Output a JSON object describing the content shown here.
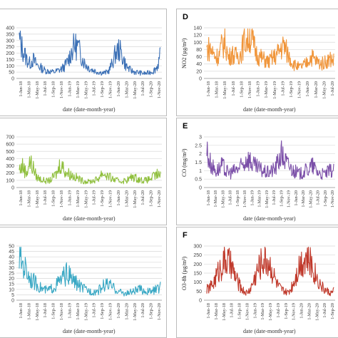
{
  "chart_data": [
    {
      "id": "A",
      "panel_letter": "",
      "type": "line",
      "color": "#3a6fb5",
      "xlabel": "date (date-month-year)",
      "ylabel": "",
      "ylim": [
        0,
        400
      ],
      "yticks": [
        0,
        50,
        100,
        150,
        200,
        250,
        300,
        350,
        400
      ],
      "xticks": [
        "1-Jan-18",
        "1-Mar-18",
        "1-May-18",
        "1-Jul-18",
        "1-Sep-18",
        "1-Nov-18",
        "1-Jan-19",
        "1-Mar-19",
        "1-May-19",
        "1-Jul-19",
        "1-Sep-19",
        "1-Nov-19",
        "1-Jan-20",
        "1-Mar-20",
        "1-May-20",
        "1-Jul-20",
        "1-Sep-20",
        "1-Nov-20"
      ],
      "series": [
        {
          "values": [
            300,
            230,
            160,
            120,
            150,
            110,
            90,
            70,
            60,
            55,
            50,
            60,
            70,
            90,
            130,
            200,
            260,
            250,
            180,
            120,
            90,
            70,
            60,
            50,
            45,
            45,
            60,
            120,
            200,
            230,
            170,
            100,
            70,
            55,
            50,
            45,
            40,
            40,
            50,
            60,
            90,
            180
          ]
        }
      ]
    },
    {
      "id": "D",
      "panel_letter": "D",
      "type": "line",
      "color": "#f0953a",
      "xlabel": "date (date-month-year)",
      "ylabel": "NO2 (µg/m³)",
      "ylim": [
        0,
        140
      ],
      "yticks": [
        0,
        20,
        40,
        60,
        80,
        100,
        120,
        140
      ],
      "xticks": [
        "1-Jan-18",
        "1-Mar-18",
        "1-May-18",
        "1-Jul-18",
        "1-Sep-18",
        "1-Nov-18",
        "1-Jan-19",
        "1-Mar-19",
        "1-May-19",
        "1-Jul-19",
        "1-Sep-19",
        "1-Nov-19",
        "1-Jan-20",
        "1-Mar-20",
        "1-May-20",
        "1-Jul-20"
      ],
      "series": [
        {
          "values": [
            80,
            85,
            70,
            60,
            65,
            95,
            100,
            55,
            70,
            60,
            65,
            70,
            100,
            110,
            120,
            95,
            70,
            60,
            55,
            50,
            45,
            55,
            60,
            70,
            85,
            90,
            70,
            55,
            40,
            35,
            30,
            35,
            40,
            55,
            60,
            50,
            45,
            40,
            45,
            50,
            55,
            50
          ]
        }
      ]
    },
    {
      "id": "B",
      "panel_letter": "",
      "type": "line",
      "color": "#8fbf3c",
      "xlabel": "date (date-month-year)",
      "ylabel": "",
      "ylim": [
        0,
        700
      ],
      "yticks": [
        0,
        100,
        200,
        300,
        400,
        500,
        600,
        700
      ],
      "xticks": [
        "1-Jan-18",
        "1-Mar-18",
        "1-May-18",
        "1-Jul-18",
        "1-Sep-18",
        "1-Nov-18",
        "1-Jan-19",
        "1-Mar-19",
        "1-May-19",
        "1-Jul-19",
        "1-Sep-19",
        "1-Nov-19",
        "1-Jan-20",
        "1-Mar-20",
        "1-May-20",
        "1-Jul-20",
        "1-Sep-20",
        "1-Nov-20"
      ],
      "series": [
        {
          "values": [
            250,
            300,
            200,
            350,
            280,
            150,
            120,
            100,
            90,
            100,
            150,
            200,
            350,
            250,
            200,
            180,
            150,
            130,
            100,
            90,
            80,
            90,
            100,
            130,
            200,
            180,
            150,
            120,
            100,
            90,
            90,
            100,
            120,
            150,
            130,
            110,
            100,
            100,
            120,
            150,
            180,
            160
          ]
        }
      ]
    },
    {
      "id": "E",
      "panel_letter": "E",
      "type": "line",
      "color": "#7b4fa8",
      "xlabel": "date (date-month-year)",
      "ylabel": "CO (mg/m³)",
      "ylim": [
        0,
        3
      ],
      "yticks": [
        0,
        0.5,
        1,
        1.5,
        2,
        2.5,
        3
      ],
      "xticks": [
        "1-Jan-18",
        "1-Mar-18",
        "1-May-18",
        "1-Jul-18",
        "1-Sep-18",
        "1-Nov-18",
        "1-Jan-19",
        "1-Mar-19",
        "1-May-19",
        "1-Jul-19",
        "1-Sep-19",
        "1-Nov-19",
        "1-Jan-20",
        "1-Mar-20",
        "1-May-20",
        "1-Jul-20",
        "1-Sep-20",
        "1-Nov-20"
      ],
      "series": [
        {
          "values": [
            2.2,
            1.5,
            1.2,
            1.0,
            1.1,
            1.3,
            1.0,
            0.9,
            0.9,
            1.0,
            1.1,
            1.2,
            1.4,
            1.8,
            1.6,
            1.3,
            1.2,
            1.1,
            1.0,
            0.9,
            0.9,
            1.0,
            1.1,
            1.5,
            2.0,
            1.7,
            1.4,
            1.2,
            1.0,
            0.9,
            0.8,
            0.9,
            1.0,
            1.1,
            1.3,
            1.1,
            0.9,
            0.8,
            0.8,
            0.9,
            1.0,
            1.0
          ]
        }
      ]
    },
    {
      "id": "C",
      "panel_letter": "",
      "type": "line",
      "color": "#3aa8c4",
      "xlabel": "date (date-month-year)",
      "ylabel": "",
      "ylim": [
        0,
        50
      ],
      "yticks": [
        0,
        5,
        10,
        15,
        20,
        25,
        30,
        35,
        40,
        45,
        50
      ],
      "xticks": [
        "1-Jan-18",
        "1-Mar-18",
        "1-May-18",
        "1-Jul-18",
        "1-Sep-18",
        "1-Nov-18",
        "1-Jan-19",
        "1-Mar-19",
        "1-May-19",
        "1-Jul-19",
        "1-Sep-19",
        "1-Nov-19",
        "1-Jan-20",
        "1-Mar-20",
        "1-May-20",
        "1-Jul-20",
        "1-Sep-20",
        "1-Nov-20"
      ],
      "series": [
        {
          "values": [
            40,
            35,
            28,
            22,
            18,
            15,
            12,
            10,
            9,
            10,
            12,
            15,
            18,
            22,
            25,
            20,
            17,
            15,
            12,
            10,
            9,
            8,
            8,
            9,
            12,
            15,
            14,
            12,
            10,
            8,
            7,
            6,
            7,
            8,
            9,
            10,
            9,
            8,
            8,
            9,
            10,
            12
          ]
        }
      ]
    },
    {
      "id": "F",
      "panel_letter": "F",
      "type": "line",
      "color": "#c0392b",
      "xlabel": "date (date-month-year)",
      "ylabel": "O3-8h (µg/m³)",
      "ylim": [
        0,
        300
      ],
      "yticks": [
        0,
        50,
        100,
        150,
        200,
        250,
        300
      ],
      "xticks": [
        "1-Jan-18",
        "1-Mar-18",
        "1-May-18",
        "1-Jul-18",
        "1-Sep-18",
        "1-Nov-18",
        "1-Jan-19",
        "1-Mar-19",
        "1-May-19",
        "1-Jul-19",
        "1-Sep-19",
        "1-Nov-19",
        "1-Jan-20",
        "1-Mar-20",
        "1-May-20",
        "1-Jul-20",
        "1-Sep-20"
      ],
      "series": [
        {
          "values": [
            60,
            70,
            90,
            130,
            170,
            200,
            220,
            210,
            180,
            140,
            100,
            70,
            50,
            40,
            60,
            100,
            150,
            190,
            220,
            230,
            210,
            170,
            120,
            80,
            60,
            50,
            40,
            60,
            100,
            150,
            200,
            230,
            240,
            220,
            190,
            150,
            110,
            80,
            60,
            50,
            40,
            50
          ]
        }
      ]
    }
  ]
}
